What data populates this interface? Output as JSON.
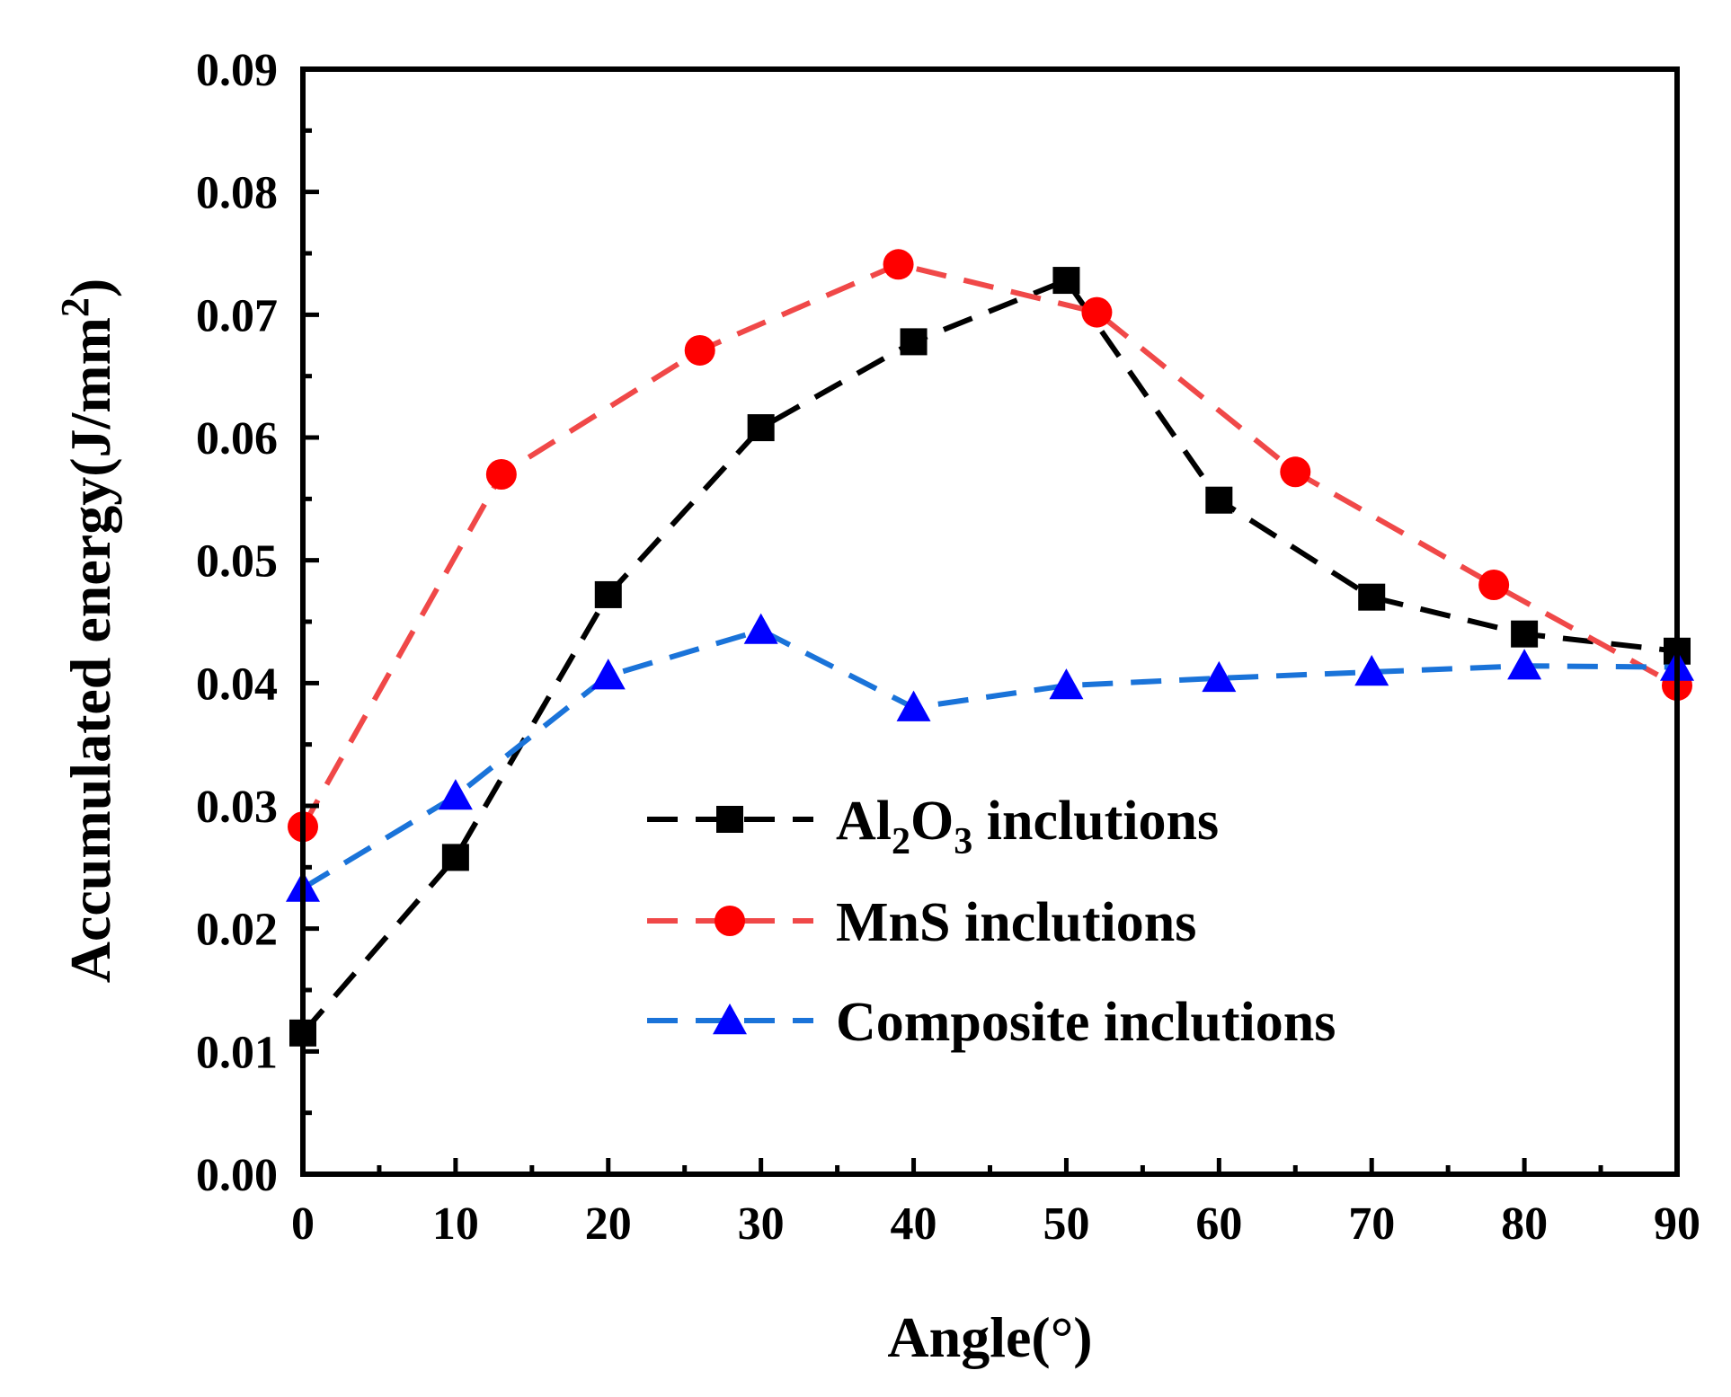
{
  "chart_data": {
    "type": "line",
    "xlabel": "Angle(°)",
    "ylabel_main": "Accumulated energy(J/mm",
    "ylabel_sup": "2",
    "ylabel_close": ")",
    "xlim": [
      0,
      90
    ],
    "ylim": [
      0.0,
      0.09
    ],
    "x_ticks": [
      0,
      10,
      20,
      30,
      40,
      50,
      60,
      70,
      80,
      90
    ],
    "x_tick_labels": [
      "0",
      "10",
      "20",
      "30",
      "40",
      "50",
      "60",
      "70",
      "80",
      "90"
    ],
    "y_ticks": [
      0.0,
      0.01,
      0.02,
      0.03,
      0.04,
      0.05,
      0.06,
      0.07,
      0.08,
      0.09
    ],
    "y_tick_labels": [
      "0.00",
      "0.01",
      "0.02",
      "0.03",
      "0.04",
      "0.05",
      "0.06",
      "0.07",
      "0.08",
      "0.09"
    ],
    "grid": false,
    "legend_position": "center-right",
    "series": [
      {
        "name": "Al2O3 inclutions",
        "legend_parts": [
          "Al",
          "2",
          "O",
          "3",
          " inclutions"
        ],
        "color": "#000000",
        "marker": "square",
        "x": [
          0,
          10,
          20,
          30,
          40,
          50,
          60,
          70,
          80,
          90
        ],
        "y": [
          0.0115,
          0.0258,
          0.0472,
          0.0608,
          0.0678,
          0.0728,
          0.0549,
          0.047,
          0.044,
          0.0426
        ]
      },
      {
        "name": "MnS inclutions",
        "legend_parts": [
          "MnS inclutions"
        ],
        "color": "#ff0000",
        "line_color": "#f04848",
        "marker": "circle",
        "x": [
          0,
          13,
          26,
          39,
          52,
          65,
          78,
          90
        ],
        "y": [
          0.0283,
          0.057,
          0.0671,
          0.0741,
          0.0702,
          0.0572,
          0.048,
          0.0398
        ]
      },
      {
        "name": "Composite inclutions",
        "legend_parts": [
          "Composite inclutions"
        ],
        "color": "#0000ff",
        "line_color": "#1a73d9",
        "marker": "triangle",
        "x": [
          0,
          10,
          20,
          30,
          40,
          50,
          60,
          70,
          80,
          90
        ],
        "y": [
          0.0233,
          0.0308,
          0.0406,
          0.0443,
          0.038,
          0.0398,
          0.0404,
          0.0409,
          0.0414,
          0.0413
        ]
      }
    ]
  }
}
